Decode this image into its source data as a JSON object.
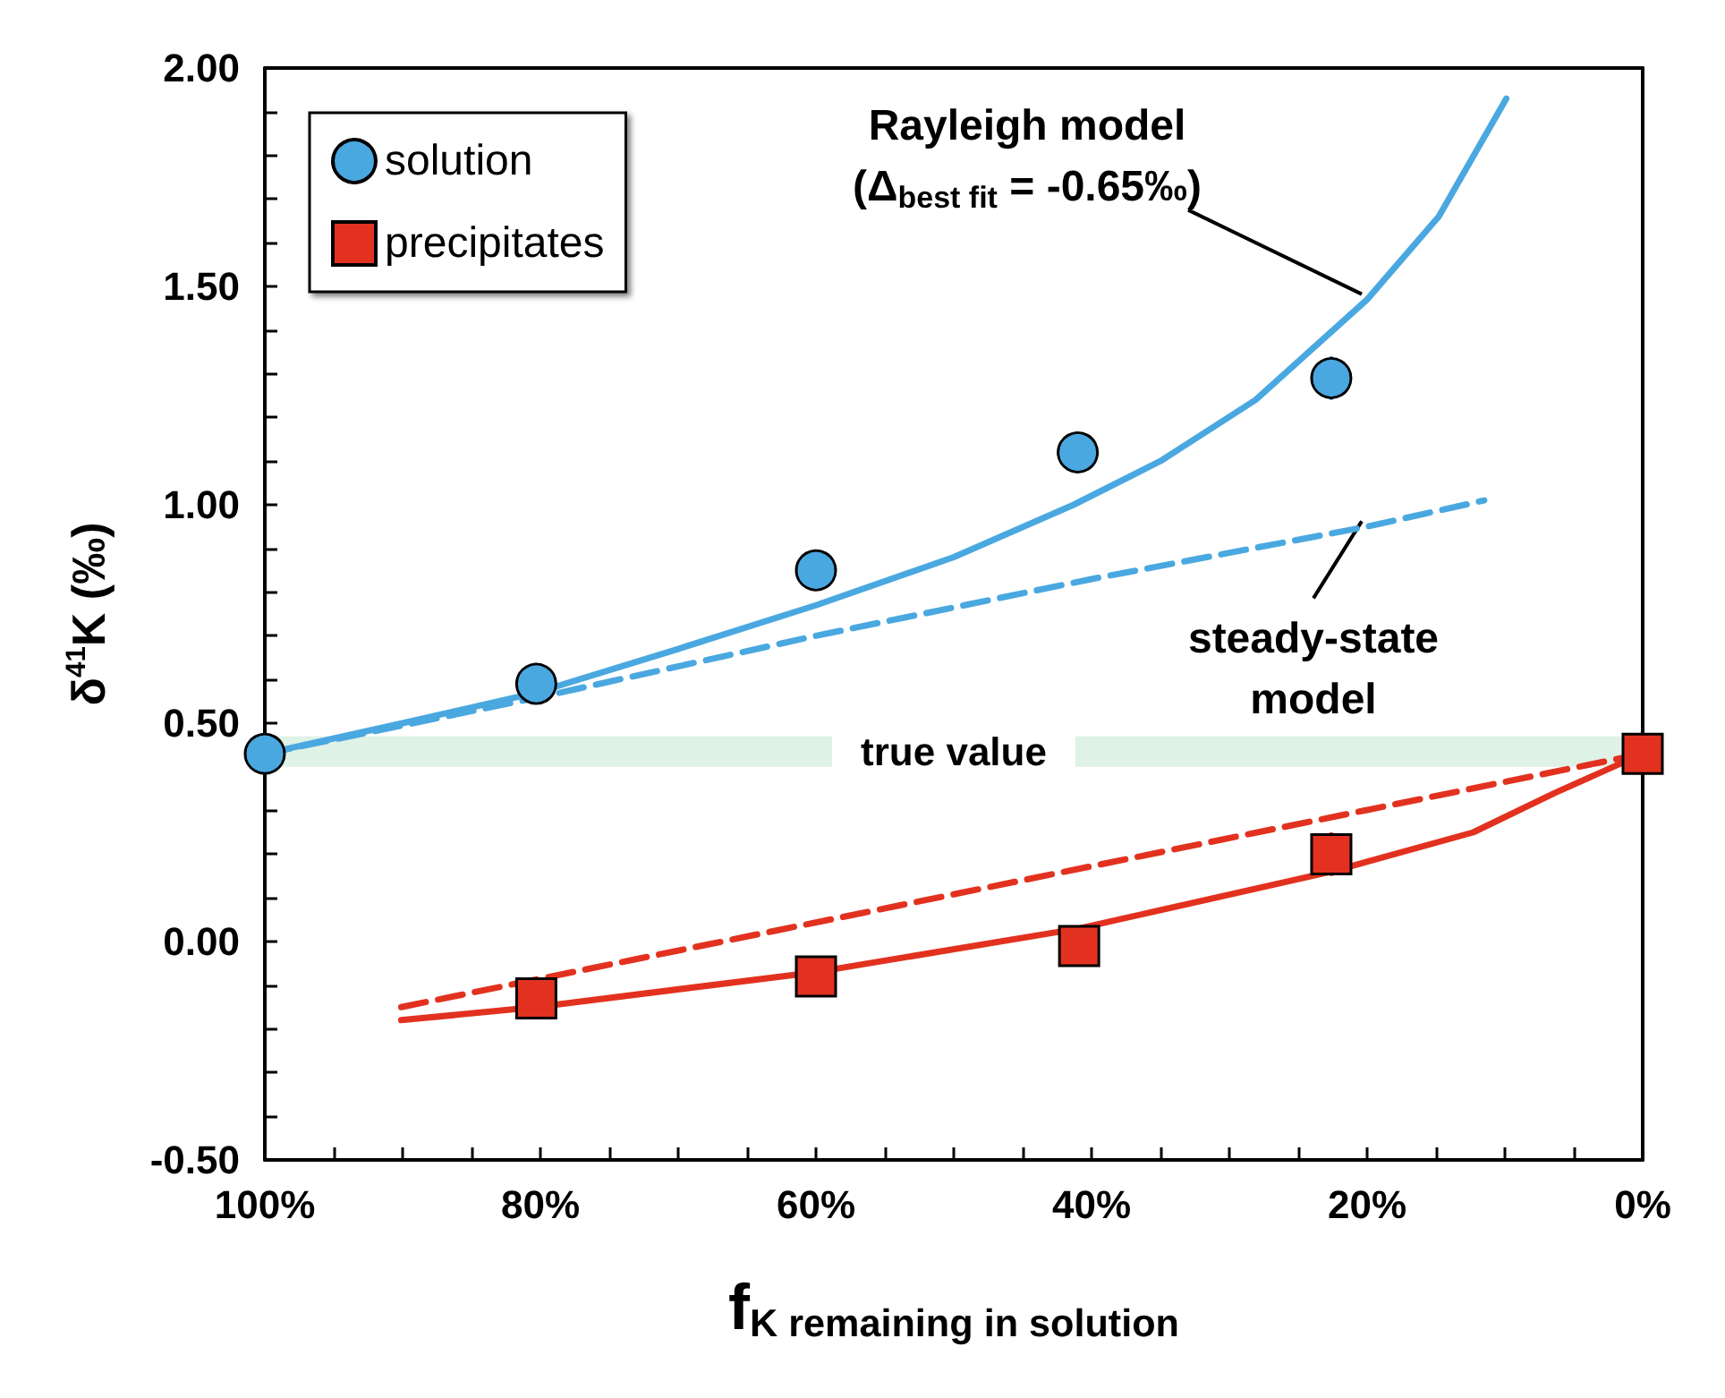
{
  "chart_data": {
    "type": "scatter",
    "xlabel": "f$_{K remaining in solution}$",
    "ylabel": "δ$^{41}$K (‰)",
    "xlim": [
      100,
      0
    ],
    "xticks": [
      {
        "value": 100,
        "label": "100%"
      },
      {
        "value": 95,
        "label": null
      },
      {
        "value": 90,
        "label": null
      },
      {
        "value": 85,
        "label": null
      },
      {
        "value": 80,
        "label": "80%"
      },
      {
        "value": 75,
        "label": null
      },
      {
        "value": 70,
        "label": null
      },
      {
        "value": 65,
        "label": null
      },
      {
        "value": 60,
        "label": "60%"
      },
      {
        "value": 55,
        "label": null
      },
      {
        "value": 50,
        "label": null
      },
      {
        "value": 45,
        "label": null
      },
      {
        "value": 40,
        "label": "40%"
      },
      {
        "value": 35,
        "label": null
      },
      {
        "value": 30,
        "label": null
      },
      {
        "value": 25,
        "label": null
      },
      {
        "value": 20,
        "label": "20%"
      },
      {
        "value": 15,
        "label": null
      },
      {
        "value": 10,
        "label": null
      },
      {
        "value": 5,
        "label": null
      },
      {
        "value": 0,
        "label": "0%"
      }
    ],
    "ylim": [
      -0.5,
      2
    ],
    "yticks": [
      {
        "value": -0.5,
        "label": "-0.50"
      },
      {
        "value": -0.4,
        "label": null
      },
      {
        "value": -0.3,
        "label": null
      },
      {
        "value": -0.2,
        "label": null
      },
      {
        "value": -0.1,
        "label": null
      },
      {
        "value": 0,
        "label": "0.00"
      },
      {
        "value": 0.1,
        "label": null
      },
      {
        "value": 0.2,
        "label": null
      },
      {
        "value": 0.3,
        "label": null
      },
      {
        "value": 0.4,
        "label": null
      },
      {
        "value": 0.5,
        "label": "0.50"
      },
      {
        "value": 0.6,
        "label": null
      },
      {
        "value": 0.7,
        "label": null
      },
      {
        "value": 0.8,
        "label": null
      },
      {
        "value": 0.9,
        "label": null
      },
      {
        "value": 1,
        "label": "1.00"
      },
      {
        "value": 1.1,
        "label": null
      },
      {
        "value": 1.2,
        "label": null
      },
      {
        "value": 1.3,
        "label": null
      },
      {
        "value": 1.4,
        "label": null
      },
      {
        "value": 1.5,
        "label": "1.50"
      },
      {
        "value": 1.6,
        "label": null
      },
      {
        "value": 1.7,
        "label": null
      },
      {
        "value": 1.8,
        "label": null
      },
      {
        "value": 1.9,
        "label": null
      },
      {
        "value": 2,
        "label": "2.00"
      }
    ],
    "grid": false,
    "legend": "top left",
    "series": [
      {
        "name": "solution",
        "marker": "circle",
        "color": "#4aa8e0",
        "x": [
          100,
          80.3,
          60,
          41,
          22.6
        ],
        "values": [
          0.43,
          0.59,
          0.85,
          1.12,
          1.29
        ],
        "errors": [
          null,
          null,
          null,
          null,
          0.05
        ]
      },
      {
        "name": "precipitates",
        "marker": "square",
        "color": "#e2321f",
        "x": [
          80.3,
          60,
          40.9,
          22.6,
          0
        ],
        "values": [
          -0.13,
          -0.08,
          -0.01,
          0.2,
          0.43
        ],
        "errors": [
          null,
          null,
          null,
          0.05,
          null
        ]
      },
      {
        "type": "line",
        "line_style": "solid",
        "color": "#4aa8e0",
        "x": [
          100,
          90,
          80.3,
          70,
          60,
          50,
          41.3,
          35,
          28.1,
          20,
          14.8,
          9.9
        ],
        "values": [
          0.43,
          0.5,
          0.57,
          0.67,
          0.77,
          0.88,
          1.0,
          1.1,
          1.24,
          1.47,
          1.66,
          1.93
        ]
      },
      {
        "type": "line",
        "line_style": "dashed",
        "color": "#4aa8e0",
        "x": [
          100,
          80,
          60,
          40,
          20,
          11.5
        ],
        "values": [
          0.43,
          0.56,
          0.7,
          0.83,
          0.95,
          1.01
        ]
      },
      {
        "type": "line",
        "line_style": "solid",
        "color": "#e2321f",
        "x": [
          90.1,
          80.3,
          60,
          40.9,
          22.6,
          12.3,
          6.4,
          0
        ],
        "values": [
          -0.18,
          -0.15,
          -0.07,
          0.03,
          0.16,
          0.25,
          0.34,
          0.43
        ]
      },
      {
        "type": "line",
        "line_style": "dashed",
        "color": "#e2321f",
        "x": [
          90.1,
          0
        ],
        "values": [
          -0.15,
          0.43
        ]
      }
    ],
    "bands": [
      {
        "axis": "y",
        "from": 0.4,
        "to": 0.47,
        "label": "true value",
        "color": "#dff2e6"
      }
    ],
    "annotations": [
      {
        "text": "Rayleigh model\n(Δ$_{best fit}$ = -0.65‰)",
        "x": 20,
        "y": 1.47
      },
      {
        "text": "steady-state\nmodel",
        "x": 20,
        "y": 0.95
      }
    ]
  }
}
